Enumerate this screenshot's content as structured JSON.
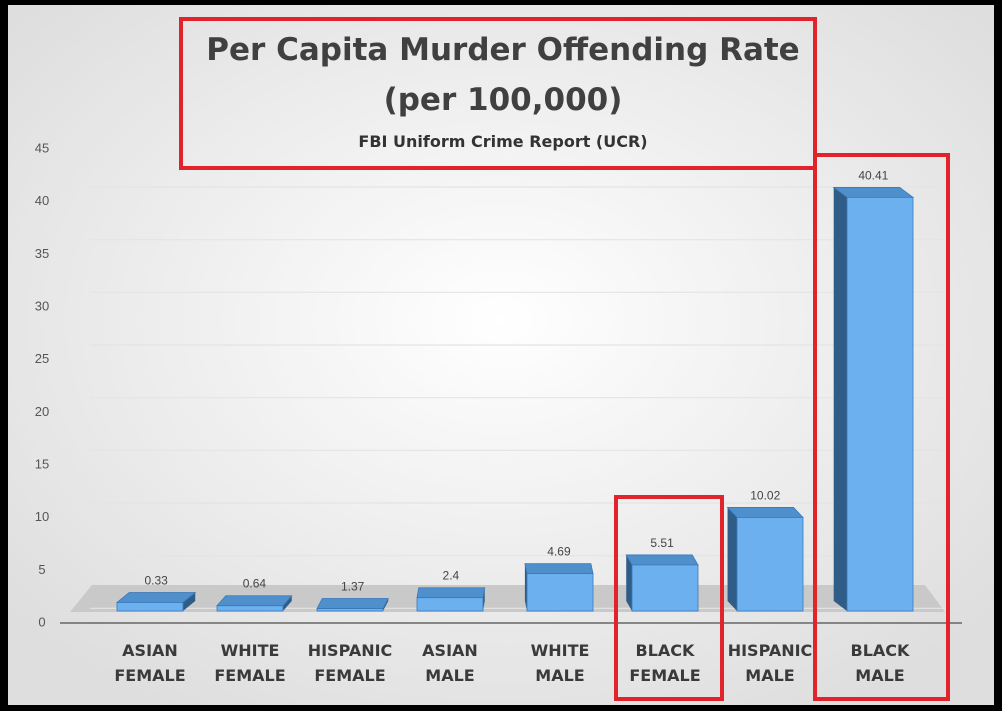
{
  "chart_data": {
    "type": "bar",
    "title": [
      "Per Capita Murder Offending Rate",
      "(per 100,000)"
    ],
    "subtitle": "FBI Uniform Crime Report (UCR)",
    "categories": [
      [
        "ASIAN",
        "FEMALE"
      ],
      [
        "WHITE",
        "FEMALE"
      ],
      [
        "HISPANIC",
        "FEMALE"
      ],
      [
        "ASIAN",
        "MALE"
      ],
      [
        "WHITE",
        "MALE"
      ],
      [
        "BLACK",
        "FEMALE"
      ],
      [
        "HISPANIC",
        "MALE"
      ],
      [
        "BLACK",
        "MALE"
      ]
    ],
    "values": [
      0.33,
      0.64,
      1.37,
      2.4,
      4.69,
      5.51,
      10.02,
      40.41
    ],
    "color": "#6cb0f0",
    "ylim": [
      0,
      45
    ],
    "yticks": [
      0,
      5,
      10,
      15,
      20,
      25,
      30,
      35,
      40,
      45
    ],
    "grid": true
  }
}
